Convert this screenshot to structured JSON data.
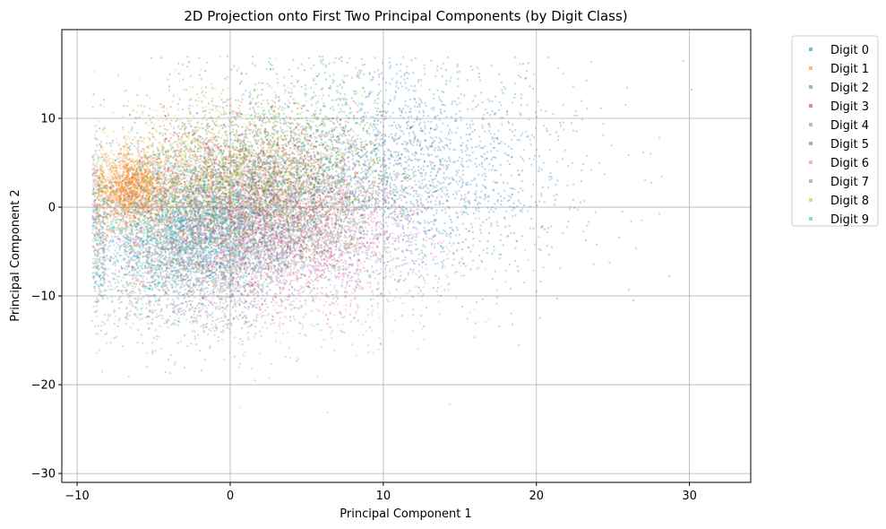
{
  "chart_data": {
    "type": "scatter",
    "title": "2D Projection onto First Two Principal Components (by Digit Class)",
    "xlabel": "Principal Component 1",
    "ylabel": "Principal Component 2",
    "xlim": [
      -11,
      34
    ],
    "ylim": [
      -31,
      20
    ],
    "xticks": [
      -10,
      0,
      10,
      20,
      30
    ],
    "yticks": [
      -30,
      -20,
      -10,
      0,
      10
    ],
    "xtick_labels": [
      "−10",
      "0",
      "10",
      "20",
      "30"
    ],
    "ytick_labels": [
      "−30",
      "−20",
      "−10",
      "0",
      "10"
    ],
    "grid": true,
    "legend_position": "outside-right",
    "point_alpha": 0.3,
    "series": [
      {
        "name": "Digit 0",
        "color": "#1f77b4",
        "center": [
          10,
          4
        ],
        "spread": [
          6.5,
          6.5
        ],
        "count": 2600
      },
      {
        "name": "Digit 1",
        "color": "#ff7f0e",
        "center": [
          -6.5,
          2
        ],
        "spread": [
          1.2,
          2.0
        ],
        "count": 1400
      },
      {
        "name": "Digit 2",
        "color": "#2ca02c",
        "center": [
          3,
          3
        ],
        "spread": [
          4.5,
          5.0
        ],
        "count": 1800
      },
      {
        "name": "Digit 3",
        "color": "#d62728",
        "center": [
          1,
          1
        ],
        "spread": [
          4.5,
          5.0
        ],
        "count": 1800
      },
      {
        "name": "Digit 4",
        "color": "#9467bd",
        "center": [
          0,
          -2
        ],
        "spread": [
          4.0,
          4.5
        ],
        "count": 1800
      },
      {
        "name": "Digit 5",
        "color": "#8c564b",
        "center": [
          2,
          0
        ],
        "spread": [
          4.5,
          4.5
        ],
        "count": 1800
      },
      {
        "name": "Digit 6",
        "color": "#e377c2",
        "center": [
          4,
          -4
        ],
        "spread": [
          5.0,
          5.0
        ],
        "count": 1900
      },
      {
        "name": "Digit 7",
        "color": "#7f7f7f",
        "center": [
          -3,
          -6
        ],
        "spread": [
          3.5,
          4.5
        ],
        "count": 1800
      },
      {
        "name": "Digit 8",
        "color": "#bcbd22",
        "center": [
          -1,
          3
        ],
        "spread": [
          4.0,
          4.5
        ],
        "count": 1800
      },
      {
        "name": "Digit 9",
        "color": "#17becf",
        "center": [
          -3,
          -3
        ],
        "spread": [
          3.5,
          4.0
        ],
        "count": 2000
      }
    ]
  }
}
